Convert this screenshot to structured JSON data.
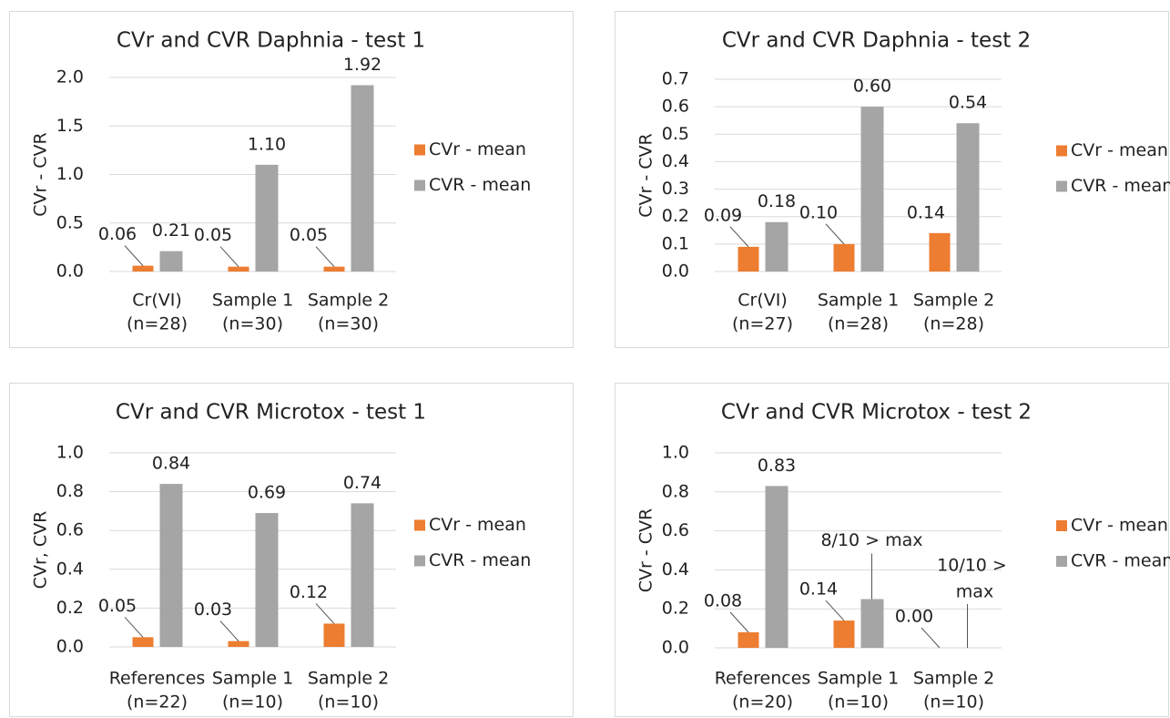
{
  "chart_data": [
    {
      "type": "bar",
      "title": "CVr and CVR Daphnia - test 1",
      "y_label": "CVr  - CVR",
      "categories": [
        [
          "Cr(VI)",
          "(n=28)"
        ],
        [
          "Sample 1",
          "(n=30)"
        ],
        [
          "Sample 2",
          "(n=30)"
        ]
      ],
      "series": [
        {
          "name": "CVr - mean",
          "color": "#ed7d31",
          "values": [
            0.06,
            0.05,
            0.05
          ],
          "value_labels": [
            "0.06",
            "0.05",
            "0.05"
          ]
        },
        {
          "name": "CVR - mean",
          "color": "#a5a5a5",
          "values": [
            0.21,
            1.1,
            1.92
          ],
          "value_labels": [
            "0.21",
            "1.10",
            "1.92"
          ]
        }
      ],
      "ylim": [
        0,
        2.0
      ],
      "yticks": [
        {
          "value": 0,
          "label": "0.0"
        },
        {
          "value": 0.5,
          "label": "0.5"
        },
        {
          "value": 1,
          "label": "1.0"
        },
        {
          "value": 1.5,
          "label": "1.5"
        },
        {
          "value": 2,
          "label": "2.0"
        }
      ],
      "grid": true
    },
    {
      "type": "bar",
      "title": "CVr and CVR Daphnia - test 2",
      "y_label": "CVr  - CVR",
      "categories": [
        [
          "Cr(VI)",
          "(n=27)"
        ],
        [
          "Sample 1",
          "(n=28)"
        ],
        [
          "Sample 2",
          "(n=28)"
        ]
      ],
      "series": [
        {
          "name": "CVr - mean",
          "color": "#ed7d31",
          "values": [
            0.09,
            0.1,
            0.14
          ],
          "value_labels": [
            "0.09",
            "0.10",
            "0.14"
          ]
        },
        {
          "name": "CVR - mean",
          "color": "#a5a5a5",
          "values": [
            0.18,
            0.6,
            0.54
          ],
          "value_labels": [
            "0.18",
            "0.60",
            "0.54"
          ]
        }
      ],
      "ylim": [
        0,
        0.7
      ],
      "yticks": [
        {
          "value": 0,
          "label": "0.0"
        },
        0.1,
        0.2,
        0.3,
        0.4,
        0.5,
        0.6,
        0.7
      ],
      "grid": true
    },
    {
      "type": "bar",
      "title": "CVr and CVR Microtox - test 1",
      "y_label": "CVr, CVR",
      "categories": [
        [
          "References",
          "(n=22)"
        ],
        [
          "Sample 1",
          "(n=10)"
        ],
        [
          "Sample 2",
          "(n=10)"
        ]
      ],
      "series": [
        {
          "name": "CVr - mean",
          "color": "#ed7d31",
          "values": [
            0.05,
            0.03,
            0.12
          ],
          "value_labels": [
            "0.05",
            "0.03",
            "0.12"
          ]
        },
        {
          "name": "CVR - mean",
          "color": "#a5a5a5",
          "values": [
            0.84,
            0.69,
            0.74
          ],
          "value_labels": [
            "0.84",
            "0.69",
            "0.74"
          ]
        }
      ],
      "ylim": [
        0,
        1.0
      ],
      "yticks": [
        {
          "value": 0,
          "label": "0.0"
        },
        0.2,
        0.4,
        0.6,
        0.8,
        {
          "value": 1,
          "label": "1.0"
        }
      ],
      "grid": true
    },
    {
      "type": "bar",
      "title": "CVr and CVR Microtox - test 2",
      "y_label": "CVr - CVR",
      "categories": [
        [
          "References",
          "(n=20)"
        ],
        [
          "Sample 1",
          "(n=10)"
        ],
        [
          "Sample 2",
          "(n=10)"
        ]
      ],
      "series": [
        {
          "name": "CVr - mean",
          "color": "#ed7d31",
          "values": [
            0.08,
            0.14,
            0.0
          ],
          "value_labels": [
            "0.08",
            "0.14",
            "0.00"
          ]
        },
        {
          "name": "CVR - mean",
          "color": "#a5a5a5",
          "values": [
            0.83,
            0.25,
            null
          ],
          "value_labels": [
            "0.83",
            null,
            null
          ]
        }
      ],
      "annotations": [
        [
          "8/10 > max"
        ],
        [
          "10/10 >",
          "max"
        ]
      ],
      "ylim": [
        0,
        1.0
      ],
      "yticks": [
        {
          "value": 0,
          "label": "0.0"
        },
        0.2,
        0.4,
        0.6,
        0.8,
        {
          "value": 1,
          "label": "1.0"
        }
      ],
      "grid": true
    }
  ]
}
